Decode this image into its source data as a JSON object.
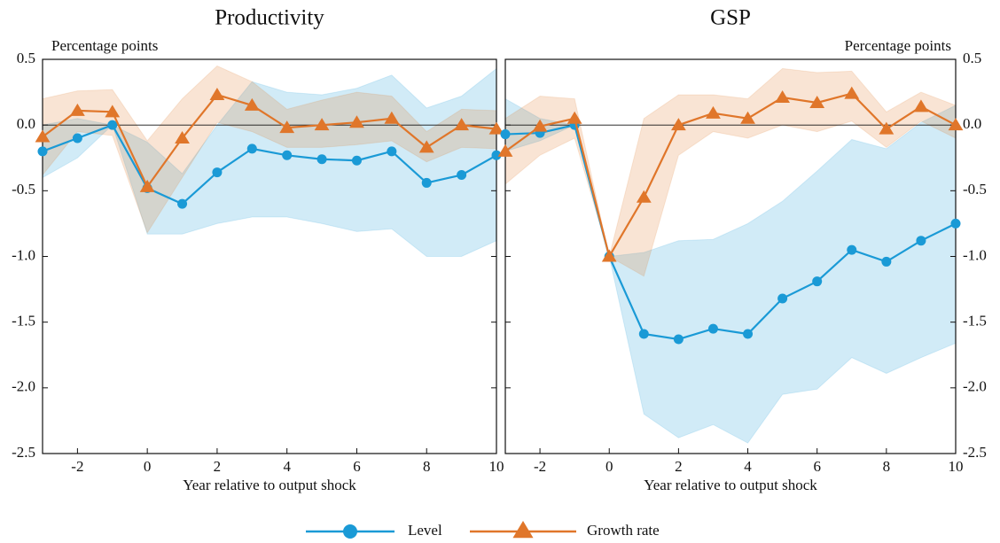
{
  "chart_data": [
    {
      "type": "line",
      "title": "Productivity",
      "y_label": "Percentage points",
      "x_label": "Year relative to output shock",
      "x": [
        -3,
        -2,
        -1,
        0,
        1,
        2,
        3,
        4,
        5,
        6,
        7,
        8,
        9,
        10
      ],
      "xlim": [
        -3,
        10
      ],
      "xticks": [
        -2,
        0,
        2,
        4,
        6,
        8,
        10
      ],
      "ylim": [
        -2.5,
        0.5
      ],
      "yticks": [
        {
          "value": -2.5,
          "label": "-2.5"
        },
        {
          "value": -2,
          "label": "-2.0"
        },
        {
          "value": -1.5,
          "label": "-1.5"
        },
        {
          "value": -1,
          "label": "-1.0"
        },
        {
          "value": -0.5,
          "label": "-0.5"
        },
        {
          "value": 0,
          "label": "0.0"
        },
        {
          "value": 0.5,
          "label": "0.5"
        }
      ],
      "tick_side": "left",
      "reference_line": 0,
      "series": [
        {
          "name": "Level",
          "color": "#1a9ad6",
          "marker": "circle",
          "values": [
            -0.2,
            -0.1,
            0.0,
            -0.48,
            -0.6,
            -0.36,
            -0.18,
            -0.23,
            -0.26,
            -0.27,
            -0.2,
            -0.44,
            -0.38,
            -0.23
          ],
          "lower": [
            -0.4,
            -0.25,
            0.0,
            -0.83,
            -0.83,
            -0.75,
            -0.7,
            -0.7,
            -0.75,
            -0.81,
            -0.79,
            -1.0,
            -1.0,
            -0.88
          ],
          "upper": [
            0.0,
            0.05,
            0.0,
            -0.13,
            -0.37,
            0.0,
            0.33,
            0.25,
            0.23,
            0.28,
            0.38,
            0.13,
            0.22,
            0.43
          ]
        },
        {
          "name": "Growth rate",
          "color": "#e0762a",
          "marker": "triangle",
          "values": [
            -0.09,
            0.11,
            0.1,
            -0.47,
            -0.1,
            0.23,
            0.15,
            -0.02,
            0.0,
            0.02,
            0.05,
            -0.17,
            0.0,
            -0.03
          ],
          "lower": [
            -0.38,
            -0.05,
            -0.08,
            -0.82,
            -0.4,
            0.02,
            -0.05,
            -0.17,
            -0.17,
            -0.15,
            -0.12,
            -0.28,
            -0.17,
            -0.18
          ],
          "upper": [
            0.2,
            0.26,
            0.27,
            -0.12,
            0.2,
            0.45,
            0.33,
            0.12,
            0.19,
            0.25,
            0.22,
            -0.05,
            0.12,
            0.11
          ]
        }
      ]
    },
    {
      "type": "line",
      "title": "GSP",
      "y_label": "Percentage points",
      "x_label": "Year relative to output shock",
      "x": [
        -3,
        -2,
        -1,
        0,
        1,
        2,
        3,
        4,
        5,
        6,
        7,
        8,
        9,
        10
      ],
      "xlim": [
        -3,
        10
      ],
      "xticks": [
        -2,
        0,
        2,
        4,
        6,
        8,
        10
      ],
      "ylim": [
        -2.5,
        0.5
      ],
      "yticks": [
        {
          "value": -2.5,
          "label": "-2.5"
        },
        {
          "value": -2,
          "label": "-2.0"
        },
        {
          "value": -1.5,
          "label": "-1.5"
        },
        {
          "value": -1,
          "label": "-1.0"
        },
        {
          "value": -0.5,
          "label": "-0.5"
        },
        {
          "value": 0,
          "label": "0.0"
        },
        {
          "value": 0.5,
          "label": "0.5"
        }
      ],
      "tick_side": "right",
      "reference_line": 0,
      "series": [
        {
          "name": "Level",
          "color": "#1a9ad6",
          "marker": "circle",
          "values": [
            -0.07,
            -0.06,
            0.0,
            -1.0,
            -1.59,
            -1.63,
            -1.55,
            -1.59,
            -1.32,
            -1.19,
            -0.95,
            -1.04,
            -0.88,
            -0.75
          ],
          "lower": [
            -0.2,
            -0.12,
            0.0,
            -1.0,
            -2.2,
            -2.38,
            -2.28,
            -2.42,
            -2.05,
            -2.01,
            -1.77,
            -1.89,
            -1.77,
            -1.66
          ],
          "upper": [
            0.2,
            0.05,
            0.0,
            -1.0,
            -0.97,
            -0.88,
            -0.87,
            -0.75,
            -0.58,
            -0.35,
            -0.11,
            -0.18,
            0.02,
            0.15
          ]
        },
        {
          "name": "Growth rate",
          "color": "#e0762a",
          "marker": "triangle",
          "values": [
            -0.2,
            -0.01,
            0.05,
            -1.0,
            -0.55,
            0.0,
            0.09,
            0.05,
            0.21,
            0.17,
            0.24,
            -0.03,
            0.14,
            0.0
          ],
          "lower": [
            -0.45,
            -0.23,
            -0.1,
            -1.0,
            -1.15,
            -0.23,
            -0.05,
            -0.1,
            0.0,
            -0.05,
            0.03,
            -0.17,
            0.03,
            -0.1
          ],
          "upper": [
            0.05,
            0.22,
            0.2,
            -1.0,
            0.05,
            0.23,
            0.23,
            0.2,
            0.43,
            0.4,
            0.41,
            0.1,
            0.25,
            0.15
          ]
        }
      ]
    }
  ]
}
